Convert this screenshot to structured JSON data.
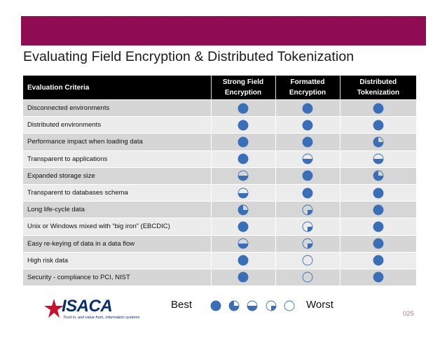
{
  "slide": {
    "title": "Evaluating Field Encryption & Distributed Tokenization",
    "page_number": "025",
    "accent_color": "#8f0b53"
  },
  "table": {
    "headers": {
      "criteria": "Evaluation Criteria",
      "col1": [
        "Strong Field",
        "Encryption"
      ],
      "col2": [
        "Formatted",
        "Encryption"
      ],
      "col3": [
        "Distributed",
        "Tokenization"
      ]
    },
    "rows": [
      {
        "label": "Disconnected environments",
        "ratings": [
          4,
          4,
          4
        ]
      },
      {
        "label": "Distributed environments",
        "ratings": [
          4,
          4,
          4
        ]
      },
      {
        "label": "Performance impact when loading data",
        "ratings": [
          4,
          4,
          3
        ]
      },
      {
        "label": "Transparent to applications",
        "ratings": [
          4,
          2,
          2
        ]
      },
      {
        "label": "Expanded storage size",
        "ratings": [
          2,
          4,
          3
        ]
      },
      {
        "label": "Transparent to databases schema",
        "ratings": [
          2,
          4,
          4
        ]
      },
      {
        "label": "Long life-cycle data",
        "ratings": [
          3,
          1,
          4
        ]
      },
      {
        "label": "Unix or Windows mixed with “big iron” (EBCDIC)",
        "ratings": [
          4,
          1,
          4
        ]
      },
      {
        "label": "Easy re-keying of data in a data flow",
        "ratings": [
          2,
          1,
          4
        ]
      },
      {
        "label": "High risk data",
        "ratings": [
          4,
          0,
          4
        ]
      },
      {
        "label": "Security - compliance to PCI, NIST",
        "ratings": [
          4,
          0,
          4
        ]
      }
    ],
    "rating_color": "#3a6fb8"
  },
  "legend": {
    "best_label": "Best",
    "worst_label": "Worst",
    "levels": [
      4,
      3,
      2,
      1,
      0
    ]
  },
  "logo": {
    "text": "ISACA",
    "tagline": "Trust in, and value from, information systems"
  }
}
